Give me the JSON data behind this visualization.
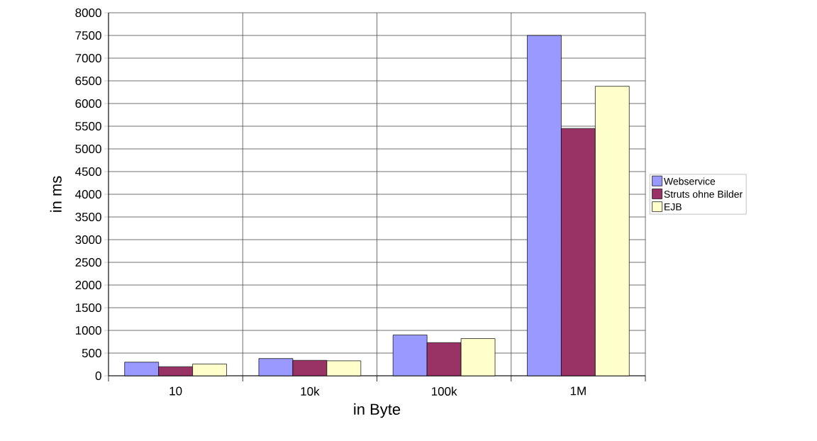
{
  "chart_data": {
    "type": "bar",
    "xlabel": "in Byte",
    "ylabel": "in ms",
    "categories": [
      "10",
      "10k",
      "100k",
      "1M"
    ],
    "series": [
      {
        "name": "Webservice",
        "color": "#9999ff",
        "values": [
          300,
          380,
          900,
          7500
        ]
      },
      {
        "name": "Struts ohne Bilder",
        "color": "#993366",
        "values": [
          200,
          340,
          730,
          5450
        ]
      },
      {
        "name": "EJB",
        "color": "#ffffcc",
        "values": [
          260,
          330,
          820,
          6380
        ]
      }
    ],
    "ylim": [
      0,
      8000
    ],
    "yticks": [
      0,
      500,
      1000,
      1500,
      2000,
      2500,
      3000,
      3500,
      4000,
      4500,
      5000,
      5500,
      6000,
      6500,
      7000,
      7500,
      8000
    ],
    "grid": true,
    "legend": "right"
  }
}
